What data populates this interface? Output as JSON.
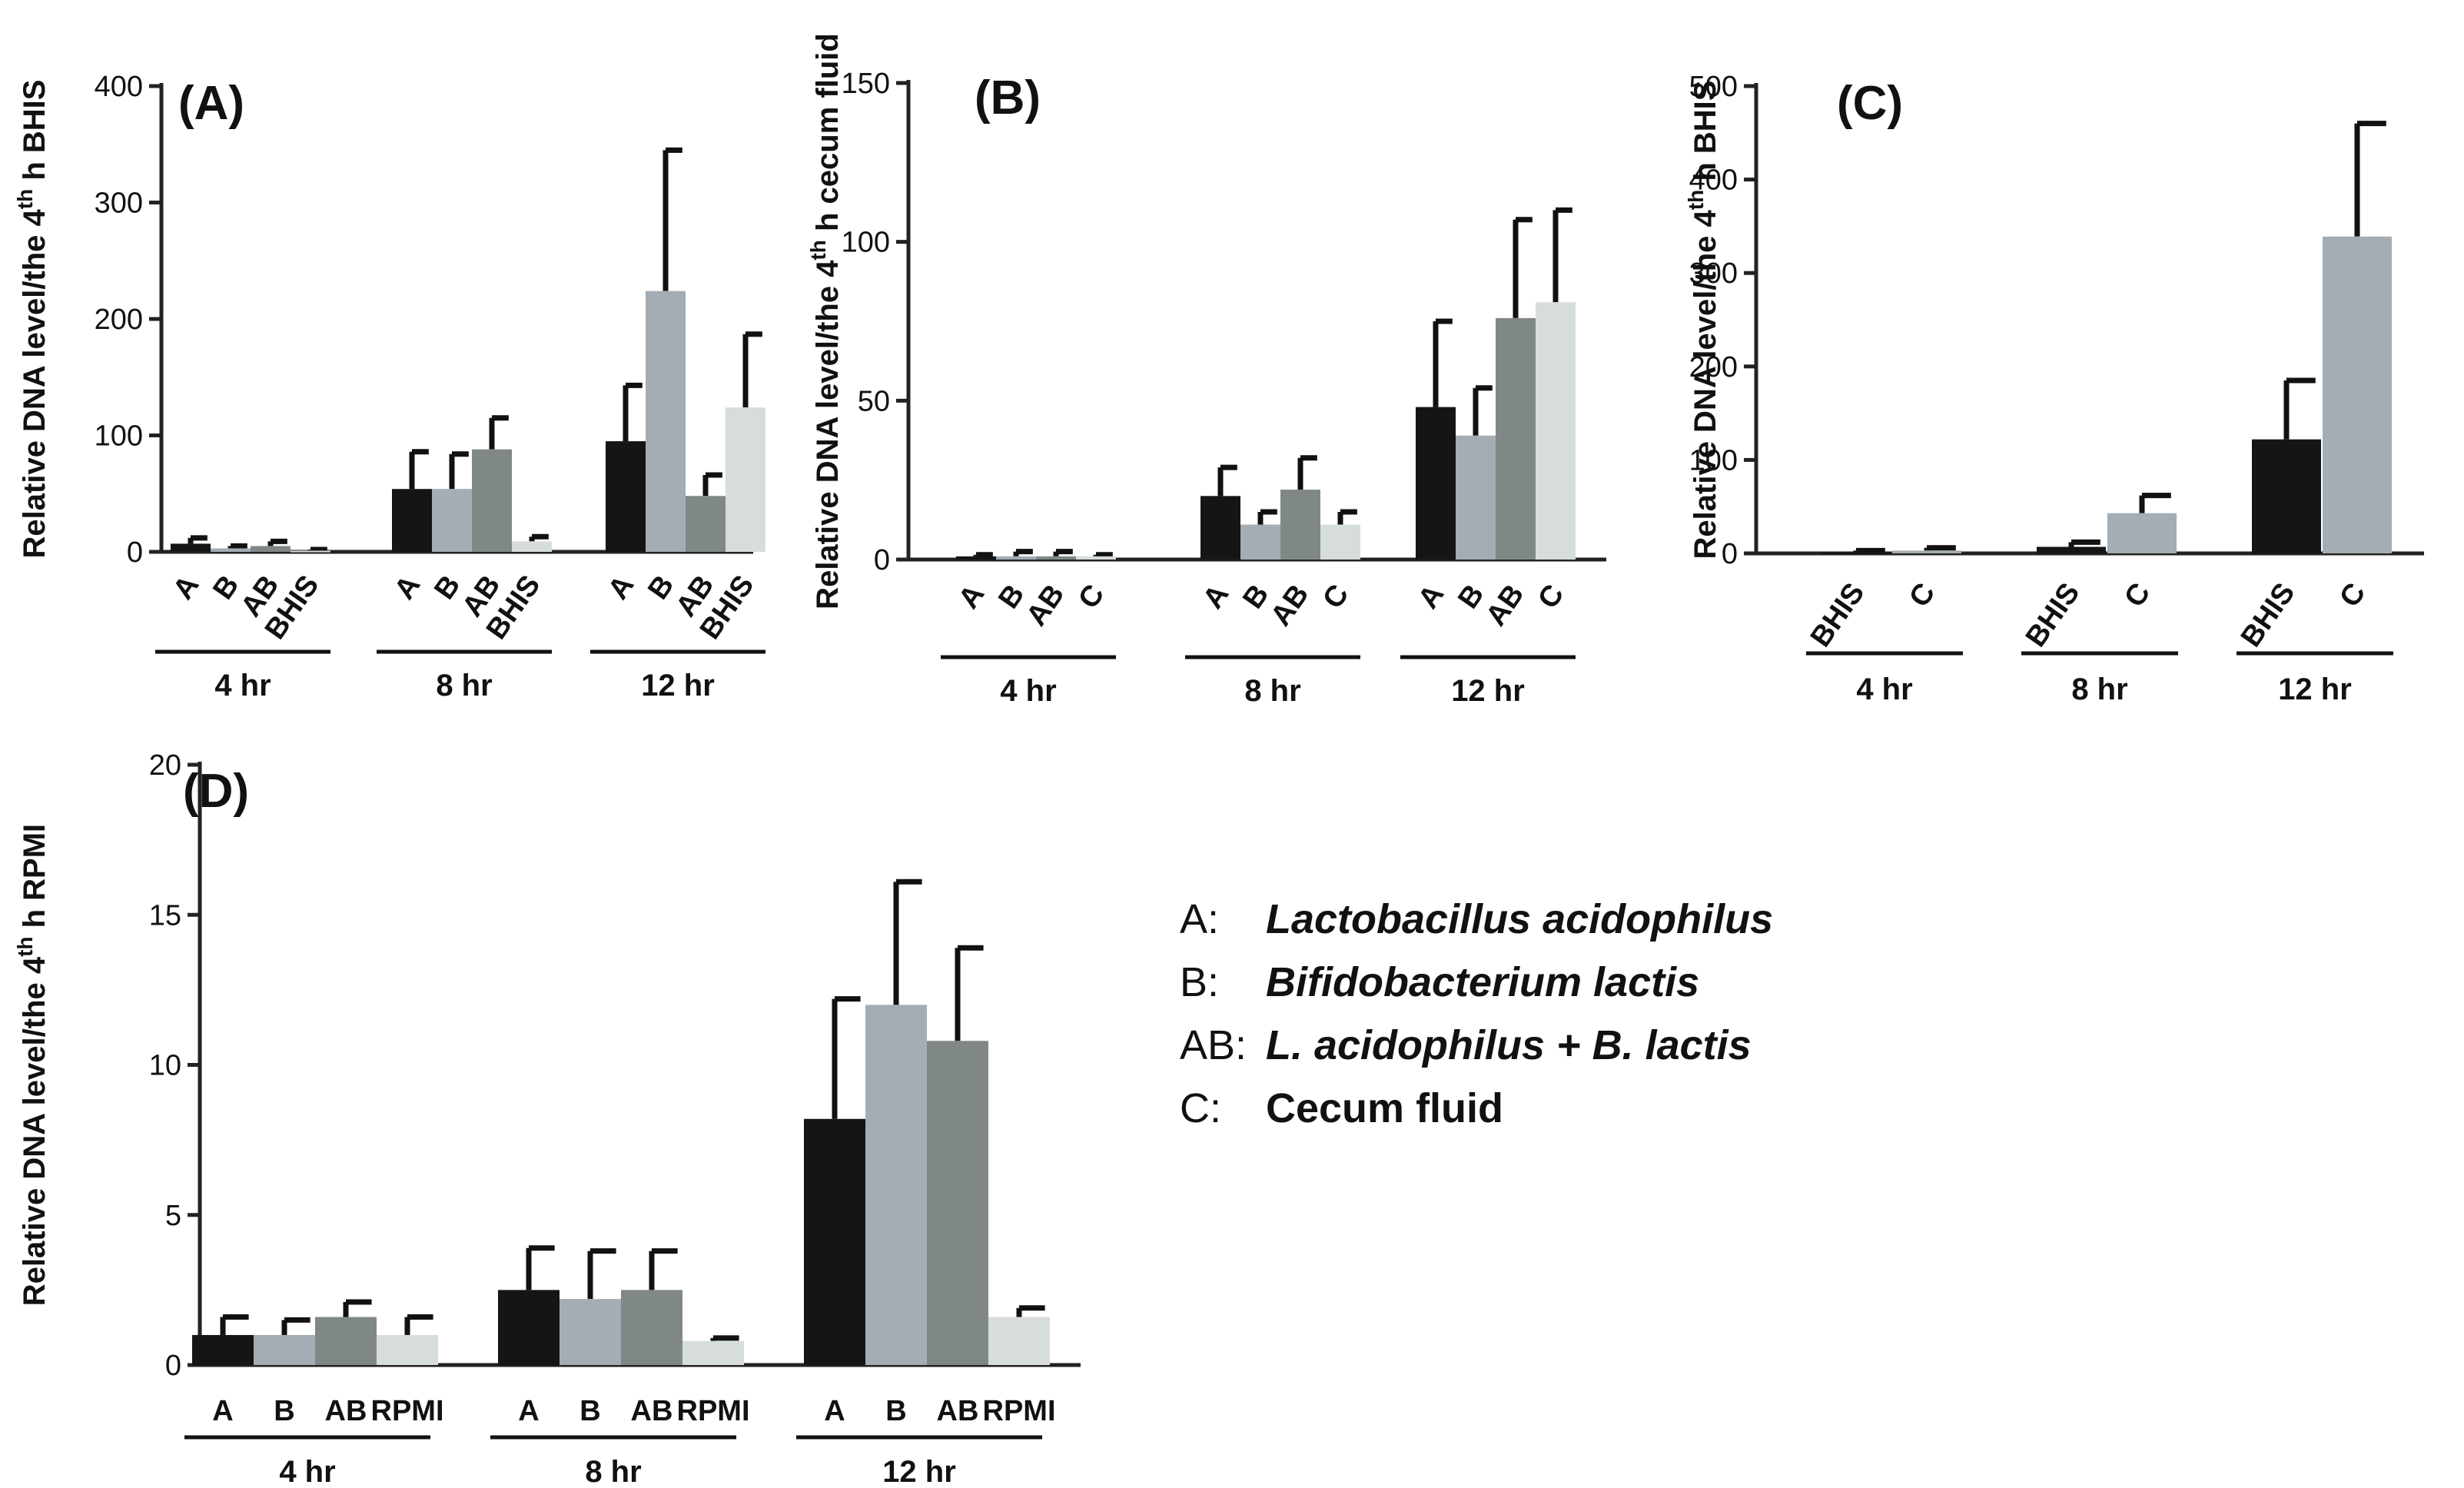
{
  "chart_data": [
    {
      "type": "bar",
      "panel": "(A)",
      "ylabel_parts": [
        "Relative DNA level/the 4",
        "th",
        " h BHIS"
      ],
      "ylim": [
        0,
        400
      ],
      "yticks": [
        0,
        100,
        200,
        300,
        400
      ],
      "groups": [
        {
          "name": "4 hr",
          "categories": [
            "A",
            "B",
            "AB",
            "BHIS"
          ],
          "values": [
            7,
            3,
            5,
            1
          ],
          "errors": [
            12,
            5,
            9,
            2
          ]
        },
        {
          "name": "8 hr",
          "categories": [
            "A",
            "B",
            "AB",
            "BHIS"
          ],
          "values": [
            54,
            54,
            88,
            9
          ],
          "errors": [
            86,
            84,
            115,
            13
          ]
        },
        {
          "name": "12 hr",
          "categories": [
            "A",
            "B",
            "AB",
            "BHIS"
          ],
          "values": [
            95,
            224,
            48,
            124
          ],
          "errors": [
            143,
            345,
            66,
            187
          ]
        }
      ],
      "colors": [
        "#151515",
        "#a3adb3",
        "#808887",
        "#d7dddd"
      ]
    },
    {
      "type": "bar",
      "panel": "(B)",
      "ylabel_parts": [
        "Relative DNA level/the 4",
        "th",
        " h cecum fluid"
      ],
      "ylim": [
        0,
        150
      ],
      "yticks": [
        0,
        50,
        100,
        150
      ],
      "groups": [
        {
          "name": "4 hr",
          "categories": [
            "A",
            "B",
            "AB",
            "C"
          ],
          "values": [
            1,
            1,
            1,
            1
          ],
          "errors": [
            1.5,
            2.5,
            2.5,
            1.5
          ]
        },
        {
          "name": "8 hr",
          "categories": [
            "A",
            "B",
            "AB",
            "C"
          ],
          "values": [
            20,
            11,
            22,
            11
          ],
          "errors": [
            29,
            15,
            32,
            15
          ]
        },
        {
          "name": "12 hr",
          "categories": [
            "A",
            "B",
            "AB",
            "C"
          ],
          "values": [
            48,
            39,
            76,
            81
          ],
          "errors": [
            75,
            54,
            107,
            110
          ]
        }
      ],
      "colors": [
        "#151515",
        "#a3adb3",
        "#808887",
        "#d7dddd"
      ]
    },
    {
      "type": "bar",
      "panel": "(C)",
      "ylabel_parts": [
        "Relative DNA level/the 4",
        "th",
        " h BHIS"
      ],
      "ylim": [
        0,
        500
      ],
      "yticks": [
        0,
        100,
        200,
        300,
        400,
        500
      ],
      "groups": [
        {
          "name": "4 hr",
          "categories": [
            "BHIS",
            "C"
          ],
          "values": [
            1,
            3
          ],
          "errors": [
            3,
            6
          ]
        },
        {
          "name": "8 hr",
          "categories": [
            "BHIS",
            "C"
          ],
          "values": [
            7,
            43
          ],
          "errors": [
            12,
            62
          ]
        },
        {
          "name": "12 hr",
          "categories": [
            "BHIS",
            "C"
          ],
          "values": [
            122,
            339
          ],
          "errors": [
            185,
            460
          ]
        }
      ],
      "colors": [
        "#151515",
        "#a3adb3"
      ]
    },
    {
      "type": "bar",
      "panel": "(D)",
      "ylabel_parts": [
        "Relative DNA level/the 4",
        "th",
        " h RPMI"
      ],
      "ylim": [
        0,
        20
      ],
      "yticks": [
        0,
        5,
        10,
        15,
        20
      ],
      "groups": [
        {
          "name": "4 hr",
          "categories": [
            "A",
            "B",
            "AB",
            "RPMI"
          ],
          "values": [
            1,
            1,
            1.6,
            1
          ],
          "errors": [
            1.6,
            1.5,
            2.1,
            1.6
          ]
        },
        {
          "name": "8 hr",
          "categories": [
            "A",
            "B",
            "AB",
            "RPMI"
          ],
          "values": [
            2.5,
            2.2,
            2.5,
            0.8
          ],
          "errors": [
            3.9,
            3.8,
            3.8,
            0.9
          ]
        },
        {
          "name": "12 hr",
          "categories": [
            "A",
            "B",
            "AB",
            "RPMI"
          ],
          "values": [
            8.2,
            12,
            10.8,
            1.6
          ],
          "errors": [
            12.2,
            16.1,
            13.9,
            1.9
          ]
        }
      ],
      "colors": [
        "#151515",
        "#a3adb3",
        "#808887",
        "#d7dddd"
      ]
    }
  ],
  "legend": [
    {
      "key": "A:",
      "desc": "Lactobacillus acidophilus",
      "italic": true
    },
    {
      "key": "B:",
      "desc": "Bifidobacterium lactis",
      "italic": true
    },
    {
      "key": "AB:",
      "desc": "L. acidophilus + B. lactis",
      "italic": true
    },
    {
      "key": "C:",
      "desc": "Cecum fluid",
      "italic": false
    }
  ]
}
